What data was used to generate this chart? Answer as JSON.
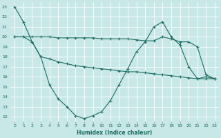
{
  "xlabel": "Humidex (Indice chaleur)",
  "bg_color": "#c8e8e8",
  "grid_color": "#ffffff",
  "line_color": "#1a6b60",
  "xlim": [
    -0.5,
    23.5
  ],
  "ylim": [
    11.5,
    23.5
  ],
  "yticks": [
    12,
    13,
    14,
    15,
    16,
    17,
    18,
    19,
    20,
    21,
    22,
    23
  ],
  "xticks": [
    0,
    1,
    2,
    3,
    4,
    5,
    6,
    7,
    8,
    9,
    10,
    11,
    12,
    13,
    14,
    15,
    16,
    17,
    18,
    19,
    20,
    21,
    22,
    23
  ],
  "series1_x": [
    0,
    1,
    2,
    3,
    4,
    5,
    6,
    7,
    8,
    9,
    10,
    11,
    12,
    13,
    14,
    15,
    16,
    17,
    18,
    19,
    20,
    21,
    22,
    23
  ],
  "series1_y": [
    23.0,
    21.5,
    19.5,
    18.0,
    15.2,
    13.8,
    13.0,
    12.1,
    11.8,
    12.1,
    12.5,
    13.6,
    15.2,
    16.8,
    18.5,
    19.5,
    21.0,
    21.5,
    20.0,
    19.2,
    17.0,
    15.8,
    16.0,
    15.8
  ],
  "series2_x": [
    0,
    1,
    2,
    3,
    4,
    5,
    6,
    7,
    8,
    9,
    10,
    11,
    12,
    13,
    14,
    15,
    16,
    17,
    18,
    19,
    20,
    21,
    22,
    23
  ],
  "series2_y": [
    20.0,
    20.0,
    20.0,
    20.0,
    20.0,
    19.9,
    19.9,
    19.9,
    19.9,
    19.9,
    19.8,
    19.8,
    19.8,
    19.8,
    19.7,
    19.6,
    19.6,
    20.0,
    19.8,
    19.5,
    19.5,
    19.0,
    16.2,
    15.8
  ],
  "series3_x": [
    0,
    1,
    2,
    3,
    4,
    5,
    6,
    7,
    8,
    9,
    10,
    11,
    12,
    13,
    14,
    15,
    16,
    17,
    18,
    19,
    20,
    21,
    22,
    23
  ],
  "series3_y": [
    20.0,
    20.0,
    19.5,
    18.0,
    17.8,
    17.5,
    17.3,
    17.1,
    17.0,
    16.9,
    16.8,
    16.7,
    16.6,
    16.5,
    16.5,
    16.4,
    16.3,
    16.2,
    16.1,
    16.0,
    15.9,
    15.8,
    15.8,
    15.8
  ]
}
